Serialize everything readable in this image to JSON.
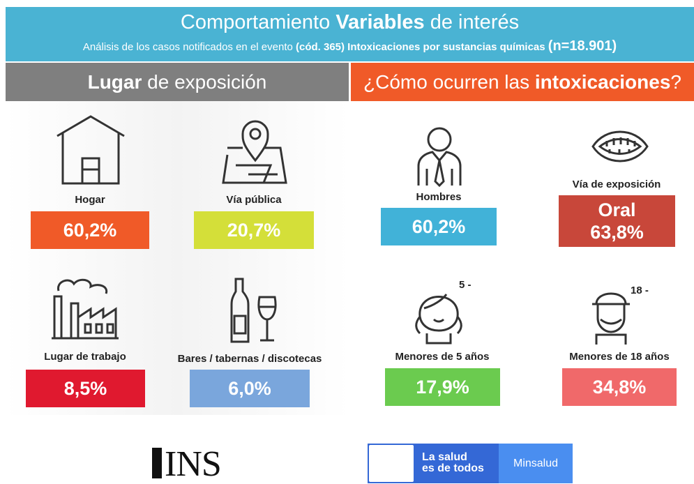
{
  "header": {
    "title": [
      "Comportamiento ",
      "Variables",
      " de interés"
    ],
    "subtitle": [
      "Análisis de los casos notificados en el evento ",
      "(cód. 365) Intoxicaciones por sustancias químicas ",
      "(n=18.901)"
    ]
  },
  "left": {
    "title": [
      "Lugar",
      " de exposición"
    ],
    "items": [
      {
        "label": "Hogar",
        "value": "60,2%"
      },
      {
        "label": "Vía pública",
        "value": "20,7%"
      },
      {
        "label": "Lugar de trabajo",
        "value": "8,5%"
      },
      {
        "label": "Bares / tabernas / discotecas",
        "value": "6,0%"
      }
    ]
  },
  "right": {
    "title": [
      "¿Cómo ocurren las ",
      "intoxicaciones",
      "?"
    ],
    "items": [
      {
        "label": "Hombres",
        "value": "60,2%"
      },
      {
        "label": "Vía de exposición",
        "value": "Oral",
        "detail": "63,8%"
      },
      {
        "label": "Menores de 5 años",
        "value": "17,9%",
        "badge": "5 -"
      },
      {
        "label": "Menores de 18 años",
        "value": "34,8%",
        "badge": "18 -"
      }
    ]
  },
  "footer": {
    "ins": "INS",
    "slogan": [
      "La salud",
      "es de todos"
    ],
    "ministry": "Minsalud"
  }
}
